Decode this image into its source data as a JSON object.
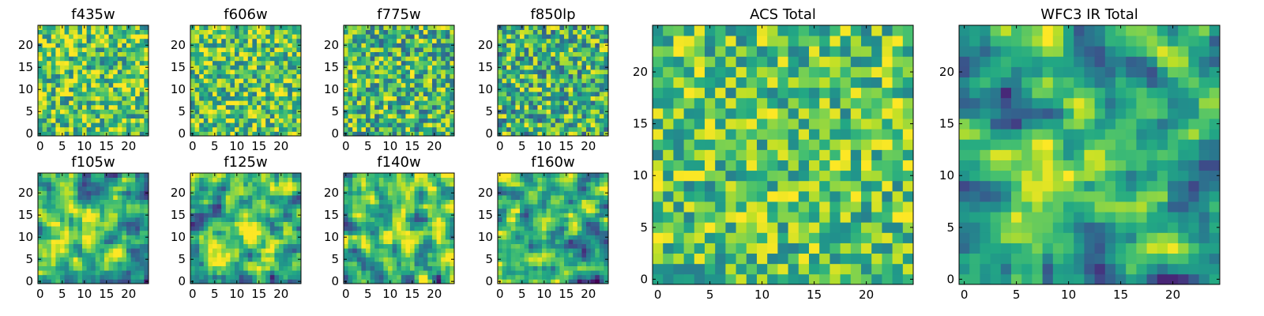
{
  "chart_data": {
    "type": "heatmap",
    "colormap": "viridis",
    "grid": false,
    "panels": [
      {
        "id": "f435w",
        "title": "f435w",
        "size": 25,
        "xticks": [
          0,
          5,
          10,
          15,
          20
        ],
        "yticks": [
          0,
          5,
          10,
          15,
          20
        ],
        "vmin": 0.0,
        "vmax": 1.0
      },
      {
        "id": "f606w",
        "title": "f606w",
        "size": 25,
        "xticks": [
          0,
          5,
          10,
          15,
          20
        ],
        "yticks": [
          0,
          5,
          10,
          15,
          20
        ],
        "vmin": 0.0,
        "vmax": 1.0
      },
      {
        "id": "f775w",
        "title": "f775w",
        "size": 25,
        "xticks": [
          0,
          5,
          10,
          15,
          20
        ],
        "yticks": [
          0,
          5,
          10,
          15,
          20
        ],
        "vmin": 0.0,
        "vmax": 1.0
      },
      {
        "id": "f850lp",
        "title": "f850lp",
        "size": 25,
        "xticks": [
          0,
          5,
          10,
          15,
          20
        ],
        "yticks": [
          0,
          5,
          10,
          15,
          20
        ],
        "vmin": 0.0,
        "vmax": 1.0
      },
      {
        "id": "f105w",
        "title": "f105w",
        "size": 25,
        "xticks": [
          0,
          5,
          10,
          15,
          20
        ],
        "yticks": [
          0,
          5,
          10,
          15,
          20
        ],
        "vmin": 0.0,
        "vmax": 1.0
      },
      {
        "id": "f125w",
        "title": "f125w",
        "size": 25,
        "xticks": [
          0,
          5,
          10,
          15,
          20
        ],
        "yticks": [
          0,
          5,
          10,
          15,
          20
        ],
        "vmin": 0.0,
        "vmax": 1.0
      },
      {
        "id": "f140w",
        "title": "f140w",
        "size": 25,
        "xticks": [
          0,
          5,
          10,
          15,
          20
        ],
        "yticks": [
          0,
          5,
          10,
          15,
          20
        ],
        "vmin": 0.0,
        "vmax": 1.0
      },
      {
        "id": "f160w",
        "title": "f160w",
        "size": 25,
        "xticks": [
          0,
          5,
          10,
          15,
          20
        ],
        "yticks": [
          0,
          5,
          10,
          15,
          20
        ],
        "vmin": 0.0,
        "vmax": 1.0
      },
      {
        "id": "acs-total",
        "title": "ACS Total",
        "size": 25,
        "xticks": [
          0,
          5,
          10,
          15,
          20
        ],
        "yticks": [
          0,
          5,
          10,
          15,
          20
        ],
        "vmin": 0.0,
        "vmax": 1.0
      },
      {
        "id": "wfc3-ir-total",
        "title": "WFC3 IR Total",
        "size": 25,
        "xticks": [
          0,
          5,
          10,
          15,
          20
        ],
        "yticks": [
          0,
          5,
          10,
          15,
          20
        ],
        "vmin": 0.0,
        "vmax": 1.0
      }
    ]
  }
}
